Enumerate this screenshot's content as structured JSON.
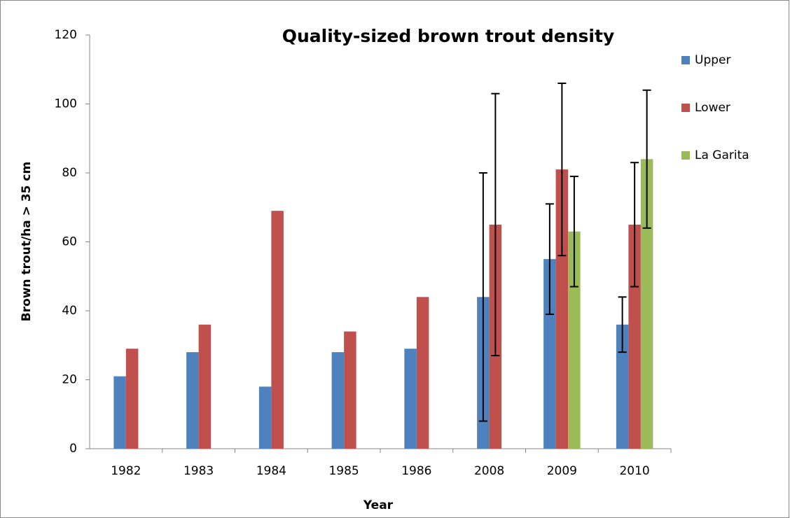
{
  "chart_data": {
    "type": "bar",
    "title": "Quality-sized brown trout density",
    "x_label": "Year",
    "y_label": "Brown trout/ha > 35 cm",
    "categories": [
      "1982",
      "1983",
      "1984",
      "1985",
      "1986",
      "2008",
      "2009",
      "2010"
    ],
    "series": [
      {
        "name": "Upper",
        "color": "#4f81bd",
        "values": [
          21,
          28,
          18,
          28,
          29,
          44,
          55,
          36
        ],
        "errors": [
          null,
          null,
          null,
          null,
          null,
          36,
          16,
          8
        ]
      },
      {
        "name": "Lower",
        "color": "#c0504d",
        "values": [
          29,
          36,
          69,
          34,
          44,
          65,
          81,
          65
        ],
        "errors": [
          null,
          null,
          null,
          null,
          null,
          38,
          25,
          18
        ]
      },
      {
        "name": "La Garita",
        "color": "#9bbb59",
        "values": [
          null,
          null,
          null,
          null,
          null,
          null,
          63,
          84
        ],
        "errors": [
          null,
          null,
          null,
          null,
          null,
          null,
          16,
          20
        ]
      }
    ],
    "ylim": [
      0,
      120
    ],
    "yticks": [
      0,
      20,
      40,
      60,
      80,
      100,
      120
    ],
    "grid": false,
    "legend": "right"
  }
}
